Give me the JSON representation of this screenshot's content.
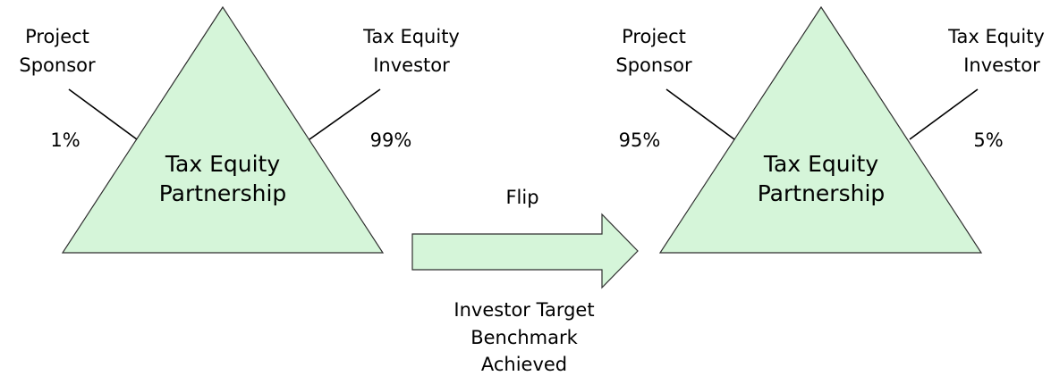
{
  "before": {
    "center": [
      "Tax Equity",
      "Partnership"
    ],
    "left": {
      "label": [
        "Project",
        "Sponsor"
      ],
      "share": "1%"
    },
    "right": {
      "label": [
        "Tax Equity",
        "Investor"
      ],
      "share": "99%"
    }
  },
  "arrow": {
    "label": "Flip",
    "caption": [
      "Investor Target",
      "Benchmark",
      "Achieved"
    ]
  },
  "after": {
    "center": [
      "Tax Equity",
      "Partnership"
    ],
    "left": {
      "label": [
        "Project",
        "Sponsor"
      ],
      "share": "95%"
    },
    "right": {
      "label": [
        "Tax Equity",
        "Investor"
      ],
      "share": "5%"
    }
  }
}
